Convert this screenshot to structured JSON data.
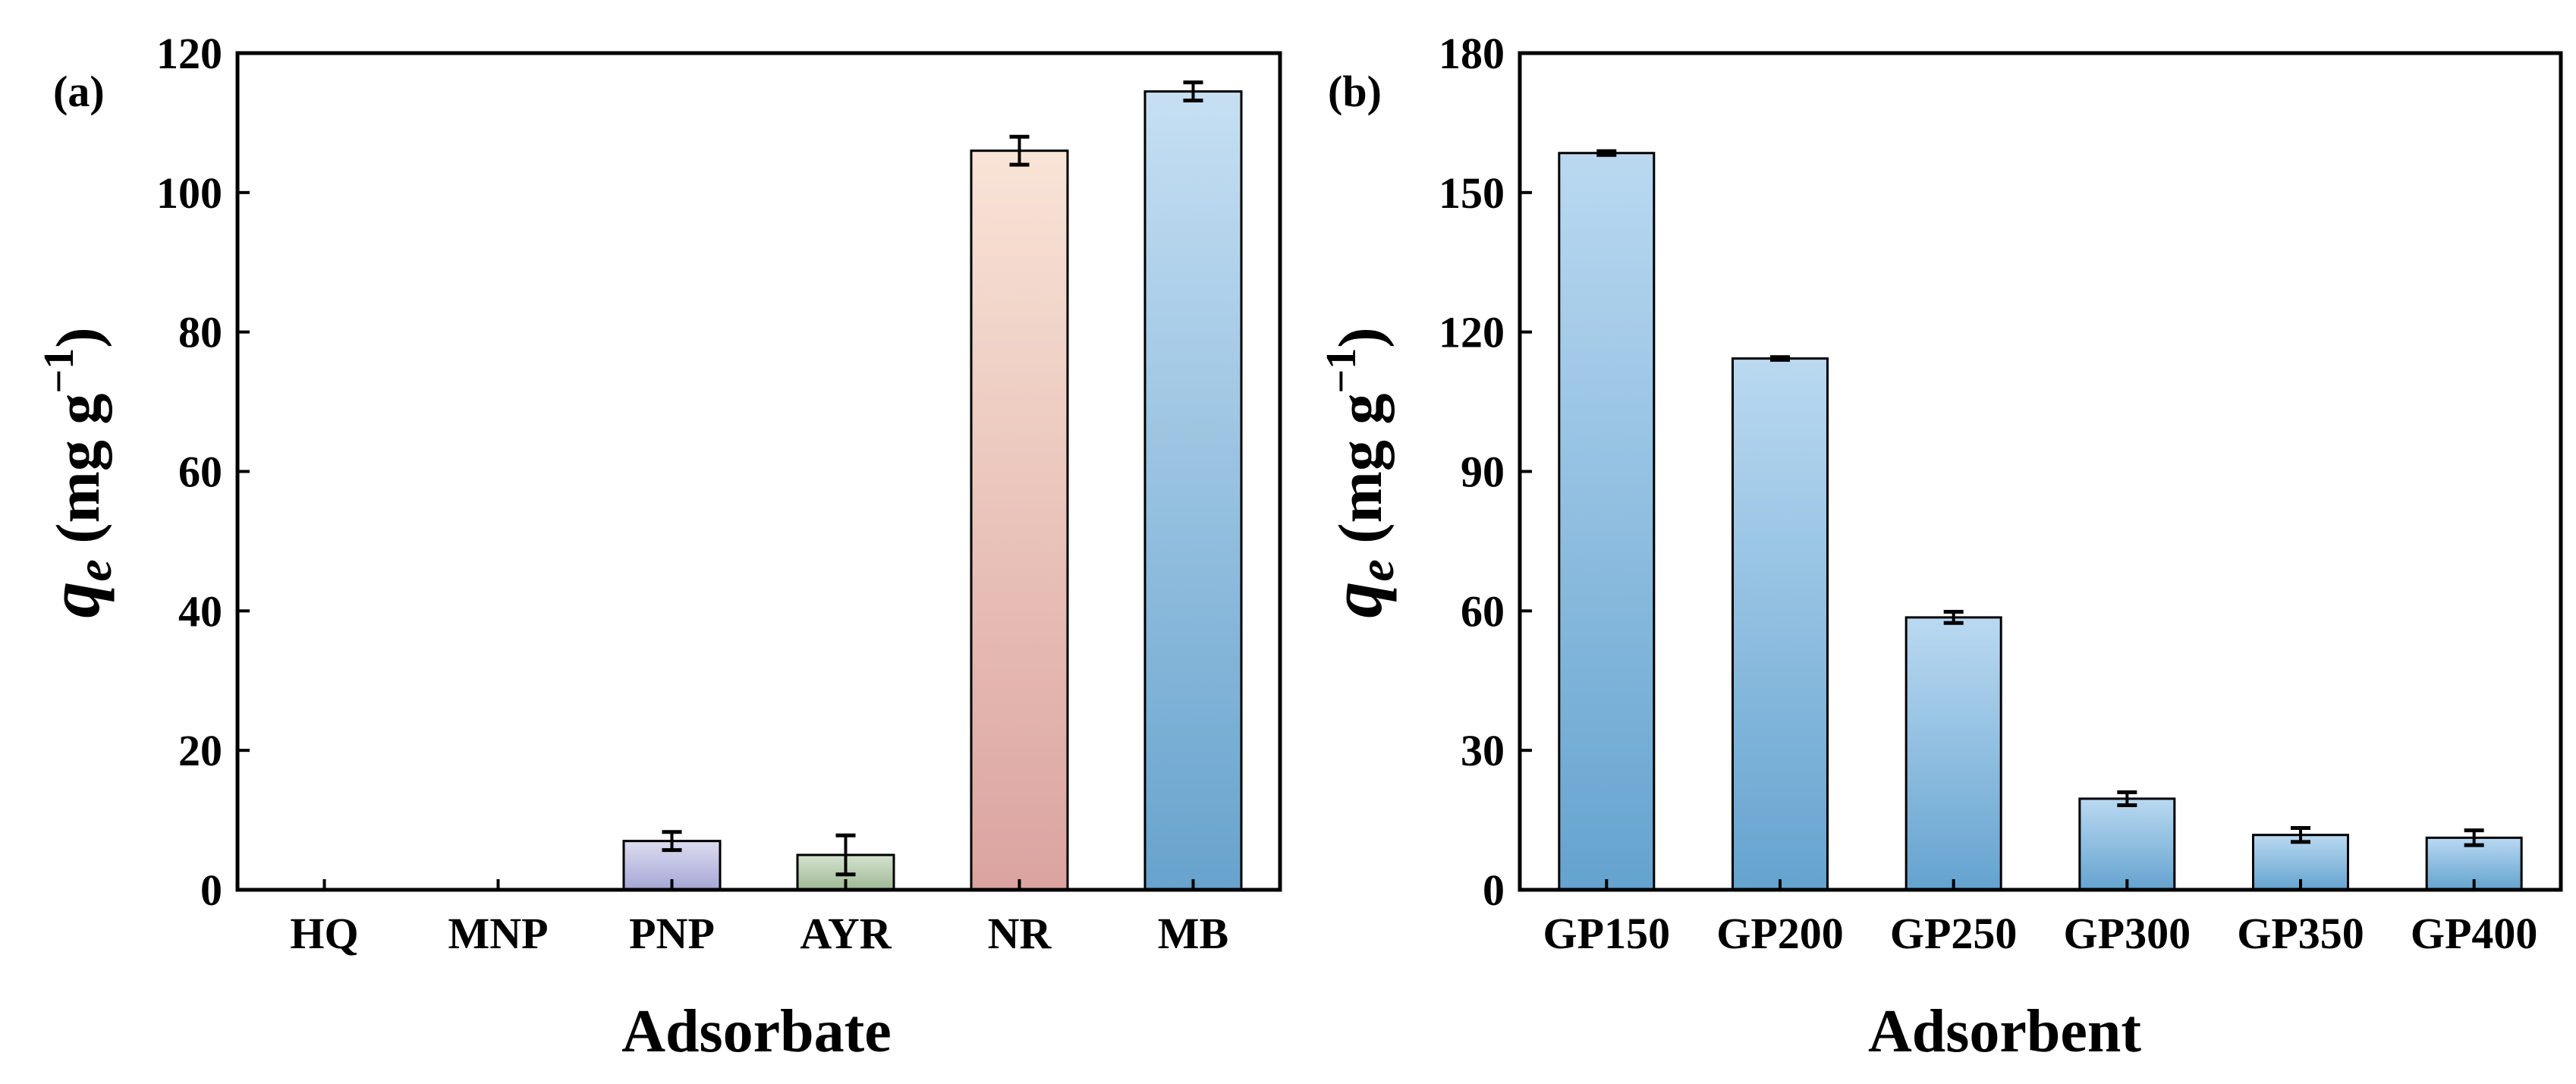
{
  "chart_data": [
    {
      "type": "bar",
      "panel_label": "(a)",
      "title": "",
      "xlabel": "Adsorbate",
      "ylabel": {
        "symbol": "q",
        "subscript": "e",
        "unit_open": " (mg g",
        "exponent": "−1",
        "unit_close": ")"
      },
      "ylim": [
        0,
        120
      ],
      "yticks": [
        0,
        20,
        40,
        60,
        80,
        100,
        120
      ],
      "categories": [
        "HQ",
        "MNP",
        "PNP",
        "AYR",
        "NR",
        "MB"
      ],
      "values": [
        0,
        0,
        7.0,
        5.0,
        106.0,
        114.5
      ],
      "errors": [
        0,
        0,
        1.3,
        2.8,
        2.0,
        1.3
      ],
      "colors": [
        {
          "top": "#dcdcf0",
          "bottom": "#a6a6d6"
        },
        {
          "top": "#dcdcf0",
          "bottom": "#a6a6d6"
        },
        {
          "top": "#dcdcf0",
          "bottom": "#a6a6d6"
        },
        {
          "top": "#d5e2cf",
          "bottom": "#9fb995"
        },
        {
          "top": "#f8e4d6",
          "bottom": "#dba39f"
        },
        {
          "top": "#c6dff3",
          "bottom": "#67a3cd"
        }
      ],
      "grid": false
    },
    {
      "type": "bar",
      "panel_label": "(b)",
      "title": "",
      "xlabel": "Adsorbent",
      "ylabel": {
        "symbol": "q",
        "subscript": "e",
        "unit_open": " (mg g",
        "exponent": "−1",
        "unit_close": ")"
      },
      "ylim": [
        0,
        180
      ],
      "yticks": [
        0,
        30,
        60,
        90,
        120,
        150,
        180
      ],
      "categories": [
        "GP150",
        "GP200",
        "GP250",
        "GP300",
        "GP350",
        "GP400"
      ],
      "values": [
        158.5,
        114.3,
        58.6,
        19.6,
        11.8,
        11.2
      ],
      "errors": [
        0.4,
        0.3,
        1.2,
        1.4,
        1.5,
        1.6
      ],
      "colors": [
        {
          "top": "#bad9f1",
          "bottom": "#64a3cf"
        },
        {
          "top": "#bad9f1",
          "bottom": "#64a3cf"
        },
        {
          "top": "#bad9f1",
          "bottom": "#64a3cf"
        },
        {
          "top": "#bad9f1",
          "bottom": "#64a3cf"
        },
        {
          "top": "#bad9f1",
          "bottom": "#64a3cf"
        },
        {
          "top": "#bad9f1",
          "bottom": "#64a3cf"
        }
      ],
      "grid": false
    }
  ]
}
